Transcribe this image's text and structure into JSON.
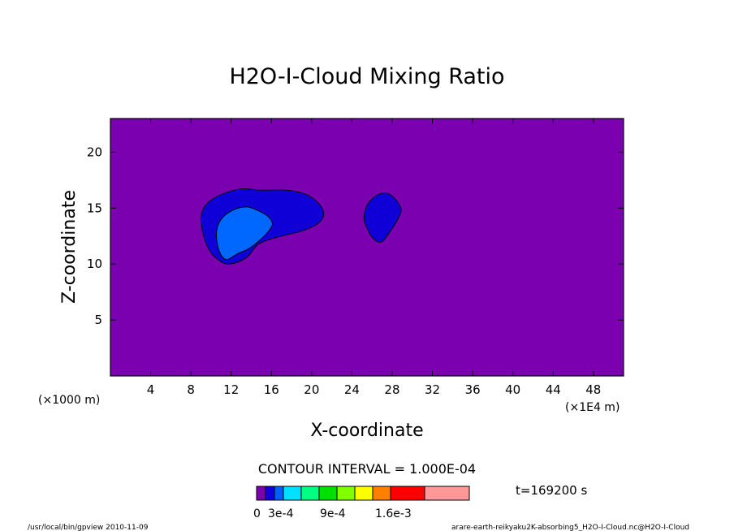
{
  "chart_data": {
    "type": "contour",
    "title": "H2O-I-Cloud Mixing Ratio",
    "xlabel": "X-coordinate",
    "ylabel": "Z-coordinate",
    "x_unit_left": "(×1000 m)",
    "x_unit_right": "(×1E4 m)",
    "xlim": [
      0,
      51
    ],
    "ylim": [
      0,
      23
    ],
    "xticks": [
      "4",
      "8",
      "12",
      "16",
      "20",
      "24",
      "28",
      "32",
      "36",
      "40",
      "44",
      "48"
    ],
    "xtick_values": [
      4,
      8,
      12,
      16,
      20,
      24,
      28,
      32,
      36,
      40,
      44,
      48
    ],
    "yticks": [
      "5",
      "10",
      "15",
      "20"
    ],
    "ytick_values": [
      5,
      10,
      15,
      20
    ],
    "grid": false,
    "background_level_color": "#7a00b0",
    "contour_interval": "CONTOUR INTERVAL = 1.000E-04",
    "time_label": "t=169200 s",
    "colorbar": {
      "colors": [
        "#7a00b0",
        "#1000e0",
        "#0060ff",
        "#00e0ff",
        "#00ff80",
        "#00e000",
        "#80ff00",
        "#ffff00",
        "#ff8000",
        "#ff0000",
        "#ff9898"
      ],
      "labels": [
        "0",
        "3e-4",
        "9e-4",
        "1.6e-3"
      ]
    },
    "regions": [
      {
        "level": 1,
        "color": "#1000d8",
        "points": [
          [
            9.0,
            14.2
          ],
          [
            9.6,
            15.4
          ],
          [
            11.0,
            16.2
          ],
          [
            13.0,
            16.7
          ],
          [
            15.0,
            16.6
          ],
          [
            17.5,
            16.6
          ],
          [
            19.5,
            16.2
          ],
          [
            20.8,
            15.3
          ],
          [
            21.2,
            14.4
          ],
          [
            20.6,
            13.6
          ],
          [
            19.2,
            13.0
          ],
          [
            17.5,
            12.6
          ],
          [
            15.8,
            12.2
          ],
          [
            14.6,
            11.7
          ],
          [
            13.8,
            10.8
          ],
          [
            13.0,
            10.3
          ],
          [
            11.8,
            10.0
          ],
          [
            11.0,
            10.2
          ],
          [
            10.0,
            11.0
          ],
          [
            9.3,
            12.4
          ]
        ]
      },
      {
        "level": 1,
        "color": "#1000d8",
        "points": [
          [
            25.2,
            14.2
          ],
          [
            25.6,
            15.4
          ],
          [
            26.6,
            16.2
          ],
          [
            27.6,
            16.3
          ],
          [
            28.5,
            15.6
          ],
          [
            28.9,
            14.8
          ],
          [
            28.5,
            13.9
          ],
          [
            27.8,
            12.9
          ],
          [
            27.0,
            12.0
          ],
          [
            26.2,
            12.2
          ],
          [
            25.5,
            13.2
          ]
        ]
      },
      {
        "level": 2,
        "color": "#0068ff",
        "points": [
          [
            10.6,
            13.2
          ],
          [
            11.2,
            14.2
          ],
          [
            12.4,
            14.9
          ],
          [
            13.6,
            15.1
          ],
          [
            14.6,
            14.8
          ],
          [
            15.6,
            14.3
          ],
          [
            16.1,
            13.6
          ],
          [
            15.6,
            12.8
          ],
          [
            14.8,
            12.1
          ],
          [
            13.8,
            11.4
          ],
          [
            12.6,
            10.9
          ],
          [
            11.6,
            10.4
          ],
          [
            11.0,
            10.8
          ],
          [
            10.6,
            11.9
          ]
        ]
      }
    ],
    "footer_left": "/usr/local/bin/gpview  2010-11-09",
    "footer_right": "arare-earth-reikyaku2K-absorbing5_H2O-I-Cloud.nc@H2O-I-Cloud"
  }
}
